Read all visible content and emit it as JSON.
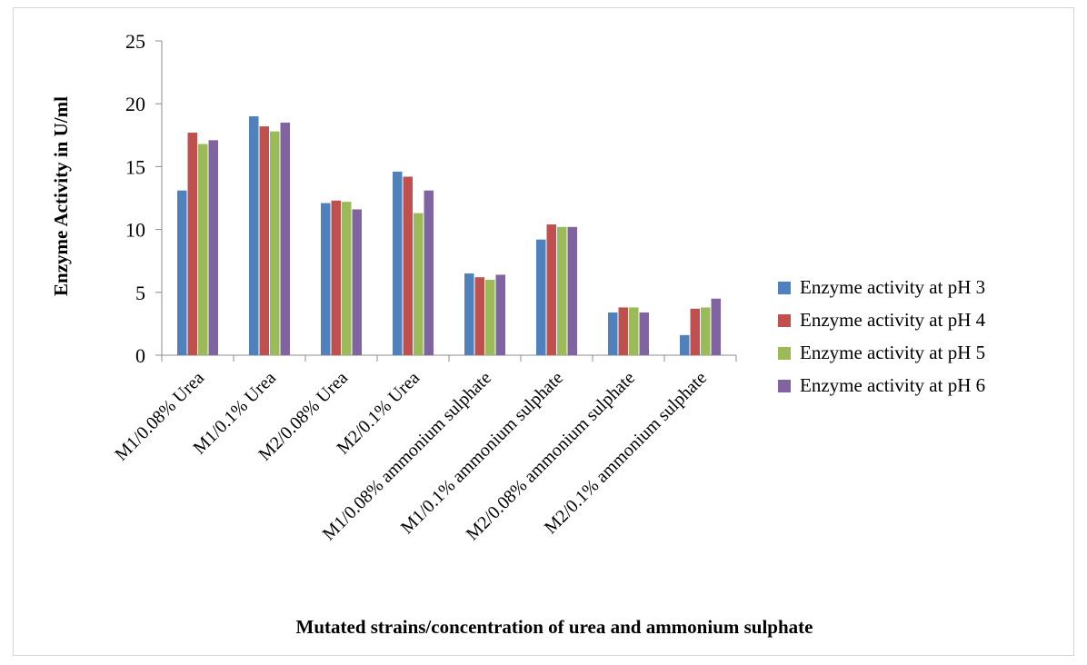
{
  "chart_data": {
    "type": "bar",
    "title": "",
    "xlabel": "Mutated strains/concentration of  urea and ammonium sulphate",
    "ylabel": "Enzyme Activity in U/ml",
    "ylim": [
      0,
      25
    ],
    "yticks": [
      0,
      5,
      10,
      15,
      20,
      25
    ],
    "grid": false,
    "legend_position": "right",
    "categories": [
      "M1/0.08% Urea",
      "M1/0.1% Urea",
      "M2/0.08% Urea",
      "M2/0.1% Urea",
      "M1/0.08% ammonium sulphate",
      "M1/0.1% ammonium sulphate",
      "M2/0.08% ammonium sulphate",
      "M2/0.1% ammonium sulphate"
    ],
    "series": [
      {
        "name": "Enzyme activity at pH 3",
        "color": "#4F81BD",
        "values": [
          13.1,
          19.0,
          12.1,
          14.6,
          6.5,
          9.2,
          3.4,
          1.6
        ]
      },
      {
        "name": "Enzyme activity at pH 4",
        "color": "#C0504D",
        "values": [
          17.7,
          18.2,
          12.3,
          14.2,
          6.2,
          10.4,
          3.8,
          3.7
        ]
      },
      {
        "name": "Enzyme activity at pH 5",
        "color": "#9BBB59",
        "values": [
          16.8,
          17.8,
          12.2,
          11.3,
          6.0,
          10.2,
          3.8,
          3.8
        ]
      },
      {
        "name": "Enzyme activity at pH 6",
        "color": "#8064A2",
        "values": [
          17.1,
          18.5,
          11.6,
          13.1,
          6.4,
          10.2,
          3.4,
          4.5
        ]
      }
    ]
  }
}
